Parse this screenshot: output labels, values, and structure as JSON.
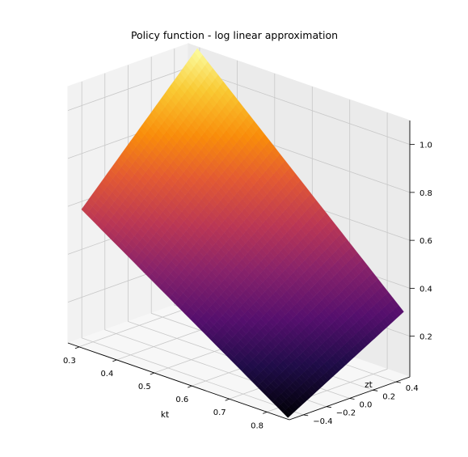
{
  "figure": {
    "title": "Policy function - log linear approximation"
  },
  "chart_data": {
    "type": "surface3d",
    "title": "Policy function - log linear approximation",
    "xlabel": "kt",
    "ylabel": "zt",
    "zlabel": "",
    "xlim": [
      0.27,
      0.86
    ],
    "ylim": [
      -0.52,
      0.52
    ],
    "zlim": [
      0.03,
      1.1
    ],
    "x_ticks": [
      0.3,
      0.4,
      0.5,
      0.6,
      0.7,
      0.8
    ],
    "x_tick_labels": [
      "0.3",
      "0.4",
      "0.5",
      "0.6",
      "0.7",
      "0.8"
    ],
    "y_ticks": [
      -0.4,
      -0.2,
      0.0,
      0.2,
      0.4
    ],
    "y_tick_labels": [
      "−0.4",
      "−0.2",
      "0.0",
      "0.2",
      "0.4"
    ],
    "z_ticks": [
      0.2,
      0.4,
      0.6,
      0.8,
      1.0
    ],
    "z_tick_labels": [
      "0.2",
      "0.4",
      "0.6",
      "0.8",
      "1.0"
    ],
    "colormap": "inferno",
    "grid": true,
    "surface": {
      "corners": [
        {
          "x": 0.3,
          "y": 0.5,
          "z": 1.1
        },
        {
          "x": 0.3,
          "y": -0.5,
          "z": 0.6
        },
        {
          "x": 0.85,
          "y": 0.5,
          "z": 0.3
        },
        {
          "x": 0.85,
          "y": -0.5,
          "z": 0.03
        }
      ]
    }
  }
}
